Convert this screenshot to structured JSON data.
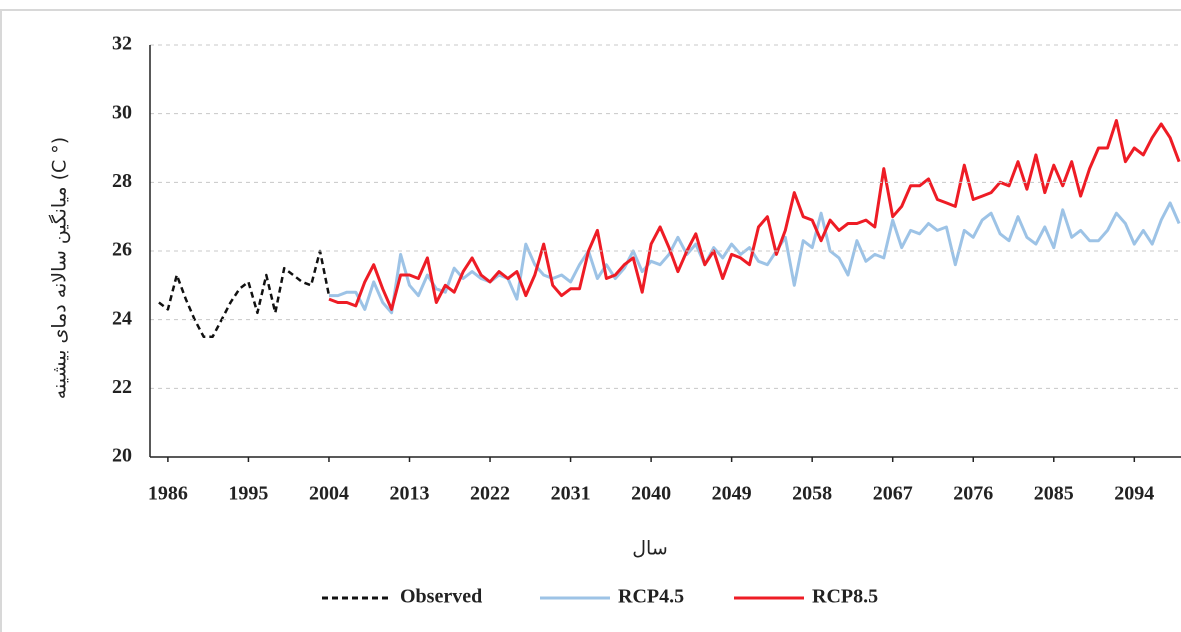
{
  "chart_data": {
    "type": "line",
    "y_label": "میانگین سالانه دمای بیشینه (C °)",
    "x_label": "سال",
    "xlim": [
      1984,
      2100
    ],
    "ylim": [
      20,
      32
    ],
    "xticks": [
      1986,
      1995,
      2004,
      2013,
      2022,
      2031,
      2040,
      2049,
      2058,
      2067,
      2076,
      2085,
      2094
    ],
    "yticks": [
      20,
      22,
      24,
      26,
      28,
      30,
      32
    ],
    "grid": true,
    "legend": "bottom",
    "series": [
      {
        "name": "Observed",
        "color": "#111111",
        "dash": true,
        "x": [
          1985,
          1986,
          1987,
          1988,
          1989,
          1990,
          1991,
          1992,
          1993,
          1994,
          1995,
          1996,
          1997,
          1998,
          1999,
          2000,
          2001,
          2002,
          2003,
          2004
        ],
        "values": [
          24.5,
          24.3,
          25.3,
          24.6,
          24.0,
          23.5,
          23.5,
          24.0,
          24.5,
          24.9,
          25.1,
          24.2,
          25.3,
          24.2,
          25.5,
          25.3,
          25.1,
          25.0,
          26.0,
          24.7
        ]
      },
      {
        "name": "RCP4.5",
        "color": "#9dc3e6",
        "dash": false,
        "x": [
          2004,
          2005,
          2006,
          2007,
          2008,
          2009,
          2010,
          2011,
          2012,
          2013,
          2014,
          2015,
          2016,
          2017,
          2018,
          2019,
          2020,
          2021,
          2022,
          2023,
          2024,
          2025,
          2026,
          2027,
          2028,
          2029,
          2030,
          2031,
          2032,
          2033,
          2034,
          2035,
          2036,
          2037,
          2038,
          2039,
          2040,
          2041,
          2042,
          2043,
          2044,
          2045,
          2046,
          2047,
          2048,
          2049,
          2050,
          2051,
          2052,
          2053,
          2054,
          2055,
          2056,
          2057,
          2058,
          2059,
          2060,
          2061,
          2062,
          2063,
          2064,
          2065,
          2066,
          2067,
          2068,
          2069,
          2070,
          2071,
          2072,
          2073,
          2074,
          2075,
          2076,
          2077,
          2078,
          2079,
          2080,
          2081,
          2082,
          2083,
          2084,
          2085,
          2086,
          2087,
          2088,
          2089,
          2090,
          2091,
          2092,
          2093,
          2094,
          2095,
          2096,
          2097,
          2098,
          2099
        ],
        "values": [
          24.7,
          24.7,
          24.8,
          24.8,
          24.3,
          25.1,
          24.5,
          24.2,
          25.9,
          25.0,
          24.7,
          25.3,
          24.9,
          24.8,
          25.5,
          25.2,
          25.4,
          25.2,
          25.1,
          25.3,
          25.2,
          24.6,
          26.2,
          25.6,
          25.3,
          25.2,
          25.3,
          25.1,
          25.6,
          26.0,
          25.2,
          25.6,
          25.2,
          25.5,
          26.0,
          25.4,
          25.7,
          25.6,
          25.9,
          26.4,
          25.9,
          26.2,
          25.6,
          26.1,
          25.8,
          26.2,
          25.9,
          26.1,
          25.7,
          25.6,
          26.0,
          26.4,
          25.0,
          26.3,
          26.1,
          27.1,
          26.0,
          25.8,
          25.3,
          26.3,
          25.7,
          25.9,
          25.8,
          26.9,
          26.1,
          26.6,
          26.5,
          26.8,
          26.6,
          26.7,
          25.6,
          26.6,
          26.4,
          26.9,
          27.1,
          26.5,
          26.3,
          27.0,
          26.4,
          26.2,
          26.7,
          26.1,
          27.2,
          26.4,
          26.6,
          26.3,
          26.3,
          26.6,
          27.1,
          26.8,
          26.2,
          26.6,
          26.2,
          26.9,
          27.4,
          26.8
        ]
      },
      {
        "name": "RCP8.5",
        "color": "#ee1c25",
        "dash": false,
        "x": [
          2004,
          2005,
          2006,
          2007,
          2008,
          2009,
          2010,
          2011,
          2012,
          2013,
          2014,
          2015,
          2016,
          2017,
          2018,
          2019,
          2020,
          2021,
          2022,
          2023,
          2024,
          2025,
          2026,
          2027,
          2028,
          2029,
          2030,
          2031,
          2032,
          2033,
          2034,
          2035,
          2036,
          2037,
          2038,
          2039,
          2040,
          2041,
          2042,
          2043,
          2044,
          2045,
          2046,
          2047,
          2048,
          2049,
          2050,
          2051,
          2052,
          2053,
          2054,
          2055,
          2056,
          2057,
          2058,
          2059,
          2060,
          2061,
          2062,
          2063,
          2064,
          2065,
          2066,
          2067,
          2068,
          2069,
          2070,
          2071,
          2072,
          2073,
          2074,
          2075,
          2076,
          2077,
          2078,
          2079,
          2080,
          2081,
          2082,
          2083,
          2084,
          2085,
          2086,
          2087,
          2088,
          2089,
          2090,
          2091,
          2092,
          2093,
          2094,
          2095,
          2096,
          2097,
          2098,
          2099
        ],
        "values": [
          24.6,
          24.5,
          24.5,
          24.4,
          25.1,
          25.6,
          24.9,
          24.3,
          25.3,
          25.3,
          25.2,
          25.8,
          24.5,
          25.0,
          24.8,
          25.4,
          25.8,
          25.3,
          25.1,
          25.4,
          25.2,
          25.4,
          24.7,
          25.3,
          26.2,
          25.0,
          24.7,
          24.9,
          24.9,
          26.0,
          26.6,
          25.2,
          25.3,
          25.6,
          25.8,
          24.8,
          26.2,
          26.7,
          26.1,
          25.4,
          26.0,
          26.5,
          25.6,
          26.0,
          25.2,
          25.9,
          25.8,
          25.6,
          26.7,
          27.0,
          25.9,
          26.6,
          27.7,
          27.0,
          26.9,
          26.3,
          26.9,
          26.6,
          26.8,
          26.8,
          26.9,
          26.7,
          28.4,
          27.0,
          27.3,
          27.9,
          27.9,
          28.1,
          27.5,
          27.4,
          27.3,
          28.5,
          27.5,
          27.6,
          27.7,
          28.0,
          27.9,
          28.6,
          27.8,
          28.8,
          27.7,
          28.5,
          27.9,
          28.6,
          27.6,
          28.4,
          29.0,
          29.0,
          29.8,
          28.6,
          29.0,
          28.8,
          29.3,
          29.7,
          29.3,
          28.6
        ]
      }
    ]
  }
}
